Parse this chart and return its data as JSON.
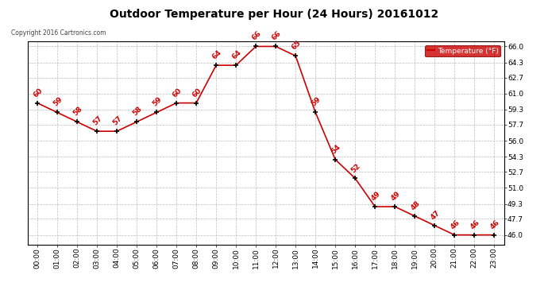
{
  "title": "Outdoor Temperature per Hour (24 Hours) 20161012",
  "copyright": "Copyright 2016 Cartronics.com",
  "legend_label": "Temperature (°F)",
  "hours": [
    "00:00",
    "01:00",
    "02:00",
    "03:00",
    "04:00",
    "05:00",
    "06:00",
    "07:00",
    "08:00",
    "09:00",
    "10:00",
    "11:00",
    "12:00",
    "13:00",
    "14:00",
    "15:00",
    "16:00",
    "17:00",
    "18:00",
    "19:00",
    "20:00",
    "21:00",
    "22:00",
    "23:00"
  ],
  "temps": [
    60,
    59,
    58,
    57,
    57,
    58,
    59,
    60,
    60,
    64,
    64,
    66,
    66,
    65,
    59,
    54,
    52,
    49,
    49,
    48,
    47,
    46,
    46,
    46
  ],
  "ylim_min": 45.0,
  "ylim_max": 66.5,
  "yticks": [
    46.0,
    47.7,
    49.3,
    51.0,
    52.7,
    54.3,
    56.0,
    57.7,
    59.3,
    61.0,
    62.7,
    64.3,
    66.0
  ],
  "line_color": "#cc0000",
  "marker_color": "#000000",
  "label_color": "#cc0000",
  "bg_color": "#ffffff",
  "grid_color": "#bbbbbb",
  "title_fontsize": 10,
  "label_fontsize": 6.5,
  "annotation_fontsize": 6.5,
  "legend_bg": "#cc0000",
  "legend_text_color": "#ffffff"
}
